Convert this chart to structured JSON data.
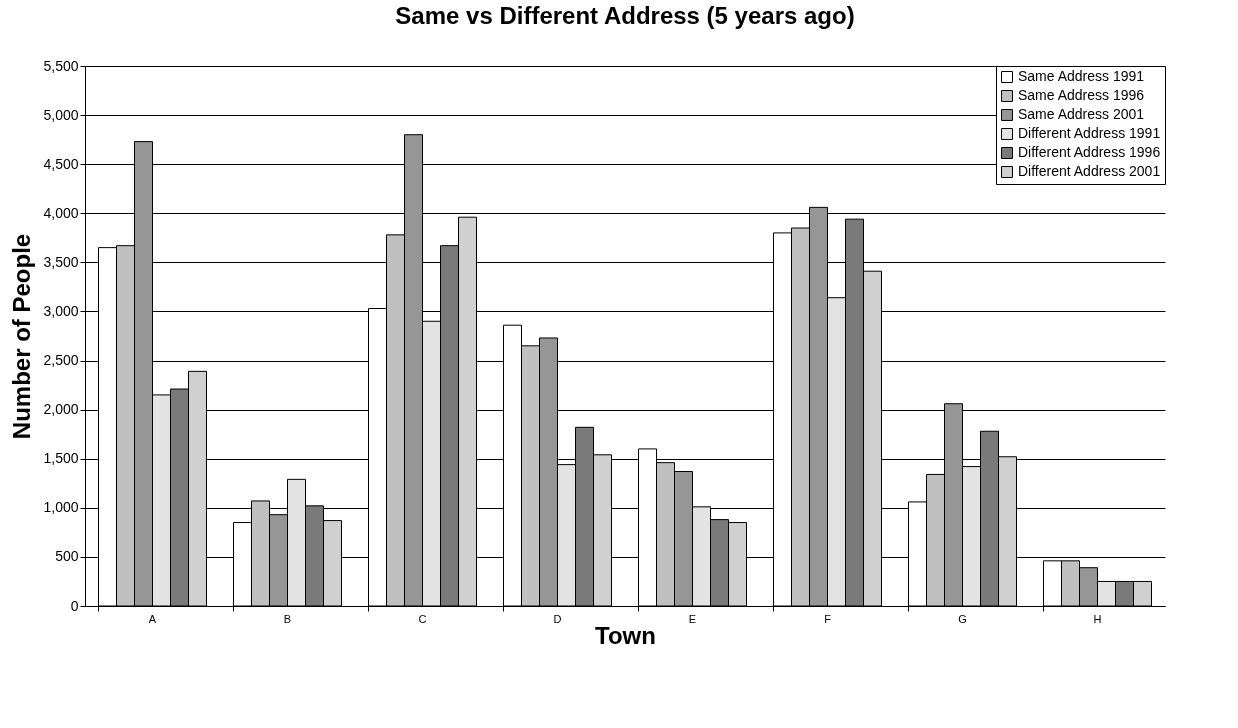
{
  "chart_data": {
    "type": "bar",
    "title": "Same vs Different Address (5 years ago)",
    "xlabel": "Town",
    "ylabel": "Number of People",
    "categories": [
      "A",
      "B",
      "C",
      "D",
      "E",
      "F",
      "G",
      "H"
    ],
    "series": [
      {
        "name": "Same Address 1991",
        "color": "#ffffff",
        "values": [
          3650,
          850,
          3030,
          2860,
          1600,
          3800,
          1060,
          460
        ]
      },
      {
        "name": "Same Address 1996",
        "color": "#c0c0c0",
        "values": [
          3670,
          1070,
          3780,
          2650,
          1460,
          3850,
          1340,
          460
        ]
      },
      {
        "name": "Same Address 2001",
        "color": "#969696",
        "values": [
          4730,
          930,
          4800,
          2730,
          1370,
          4060,
          2060,
          390
        ]
      },
      {
        "name": "Different Address 1991",
        "color": "#e3e3e3",
        "values": [
          2150,
          1290,
          2900,
          1440,
          1010,
          3140,
          1420,
          250
        ]
      },
      {
        "name": "Different Address 1996",
        "color": "#7a7a7a",
        "values": [
          2210,
          1020,
          3670,
          1820,
          880,
          3940,
          1780,
          250
        ]
      },
      {
        "name": "Different Address 2001",
        "color": "#d0d0d0",
        "values": [
          2390,
          870,
          3960,
          1540,
          850,
          3410,
          1520,
          250
        ]
      }
    ],
    "ylim": [
      0,
      5500
    ],
    "yticks": [
      {
        "value": 0,
        "label": "0"
      },
      {
        "value": 500,
        "label": "500"
      },
      {
        "value": 1000,
        "label": "1,000"
      },
      {
        "value": 1500,
        "label": "1,500"
      },
      {
        "value": 2000,
        "label": "2,000"
      },
      {
        "value": 2500,
        "label": "2,500"
      },
      {
        "value": 3000,
        "label": "3,000"
      },
      {
        "value": 3500,
        "label": "3,500"
      },
      {
        "value": 4000,
        "label": "4,000"
      },
      {
        "value": 4500,
        "label": "4,500"
      },
      {
        "value": 5000,
        "label": "5,000"
      },
      {
        "value": 5500,
        "label": "5,500"
      }
    ],
    "grid": "y",
    "legend": "top right"
  }
}
